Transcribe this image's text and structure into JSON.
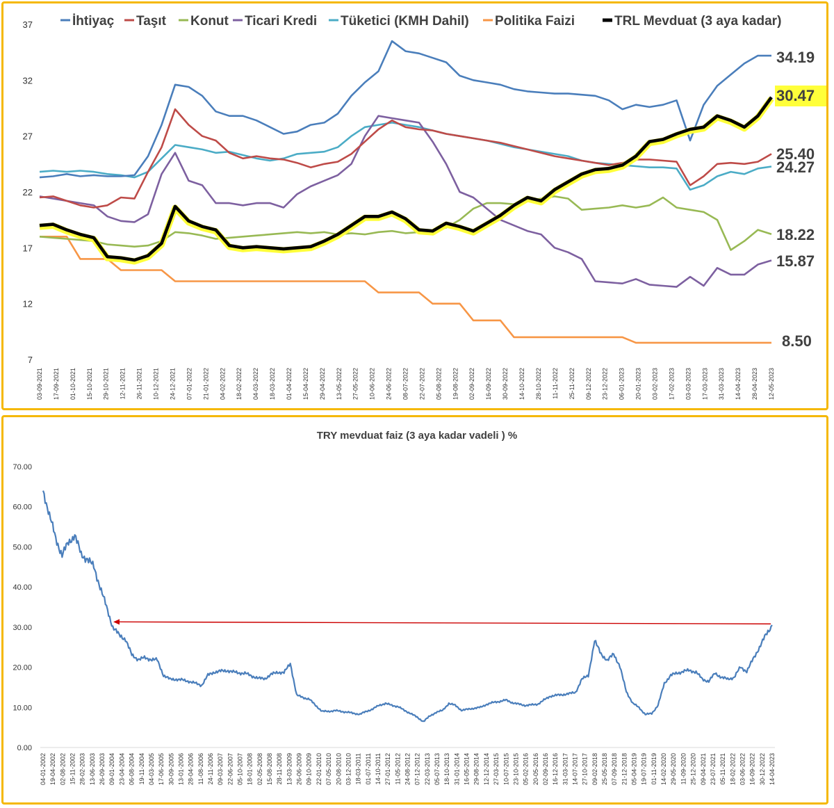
{
  "chart_data": [
    {
      "type": "line",
      "title": "",
      "xlabel": "",
      "ylabel": "",
      "ylim": [
        7,
        37
      ],
      "yticks": [
        7,
        12,
        17,
        22,
        27,
        32,
        37
      ],
      "grid": false,
      "legend_placement": "top",
      "x_ticks": [
        "03-09-2021",
        "17-09-2021",
        "01-10-2021",
        "15-10-2021",
        "29-10-2021",
        "12-11-2021",
        "26-11-2021",
        "10-12-2021",
        "24-12-2021",
        "07-01-2022",
        "21-01-2022",
        "04-02-2022",
        "18-02-2022",
        "04-03-2022",
        "18-03-2022",
        "01-04-2022",
        "15-04-2022",
        "29-04-2022",
        "13-05-2022",
        "27-05-2022",
        "10-06-2022",
        "24-06-2022",
        "08-07-2022",
        "22-07-2022",
        "05-08-2022",
        "19-08-2022",
        "02-09-2022",
        "16-09-2022",
        "30-09-2022",
        "14-10-2022",
        "28-10-2022",
        "11-11-2022",
        "25-11-2022",
        "09-12-2022",
        "23-12-2022",
        "06-01-2023",
        "20-01-2023",
        "03-02-2023",
        "17-02-2023",
        "03-03-2023",
        "17-03-2023",
        "31-03-2023",
        "14-04-2023",
        "28-04-2023",
        "12-05-2023"
      ],
      "series": [
        {
          "name": "İhtiyaç",
          "color": "#4a7ebb",
          "end_label": "34.19",
          "values": [
            23.3,
            23.4,
            23.6,
            23.4,
            23.5,
            23.4,
            23.4,
            23.5,
            25.2,
            28,
            31.6,
            31.4,
            30.6,
            29.2,
            28.8,
            28.8,
            28.4,
            27.8,
            27.2,
            27.4,
            28,
            28.2,
            29,
            30.6,
            31.8,
            32.8,
            35.5,
            34.6,
            34.4,
            34,
            33.6,
            32.4,
            32,
            31.8,
            31.6,
            31.2,
            31,
            30.9,
            30.8,
            30.8,
            30.7,
            30.6,
            30.2,
            29.4,
            29.8,
            29.6,
            29.8,
            30.2,
            26.6,
            29.8,
            31.5,
            32.5,
            33.5,
            34.2,
            34.19
          ]
        },
        {
          "name": "Taşıt",
          "color": "#be4b48",
          "end_label": "25.40",
          "values": [
            21.5,
            21.6,
            21.2,
            20.8,
            20.6,
            20.8,
            21.5,
            21.4,
            23.8,
            26,
            29.4,
            28,
            27,
            26.6,
            25.5,
            25,
            25.2,
            25,
            24.9,
            24.6,
            24.2,
            24.5,
            24.7,
            25.4,
            26.5,
            27.6,
            28.4,
            27.8,
            27.6,
            27.5,
            27.2,
            27,
            26.8,
            26.6,
            26.4,
            26.1,
            25.8,
            25.5,
            25.2,
            25,
            24.8,
            24.6,
            24.4,
            24.6,
            24.9,
            24.9,
            24.8,
            24.7,
            22.6,
            23.4,
            24.5,
            24.6,
            24.5,
            24.7,
            25.4
          ]
        },
        {
          "name": "Konut",
          "color": "#98b954",
          "end_label": "18.22",
          "values": [
            18,
            17.9,
            17.8,
            17.7,
            17.6,
            17.3,
            17.2,
            17.1,
            17.2,
            17.6,
            18.4,
            18.3,
            18.1,
            17.8,
            17.9,
            18,
            18.1,
            18.2,
            18.3,
            18.4,
            18.3,
            18.4,
            18.2,
            18.3,
            18.2,
            18.4,
            18.5,
            18.3,
            18.4,
            18.5,
            18.8,
            19.5,
            20.5,
            21,
            21,
            20.9,
            21.2,
            21.4,
            21.6,
            21.4,
            20.4,
            20.5,
            20.6,
            20.8,
            20.6,
            20.8,
            21.5,
            20.6,
            20.4,
            20.2,
            19.5,
            16.8,
            17.6,
            18.6,
            18.22
          ]
        },
        {
          "name": "Ticari Kredi",
          "color": "#7d60a0",
          "end_label": "15.87",
          "values": [
            21.6,
            21.4,
            21.2,
            21,
            20.8,
            19.8,
            19.4,
            19.3,
            20,
            23.6,
            25.5,
            23,
            22.6,
            21,
            21,
            20.8,
            21,
            21,
            20.6,
            21.8,
            22.5,
            23,
            23.5,
            24.5,
            27,
            28.8,
            28.6,
            28.4,
            28.2,
            26.5,
            24.5,
            22,
            21.5,
            20.5,
            19.5,
            19,
            18.5,
            18.2,
            17,
            16.6,
            16,
            14,
            13.9,
            13.8,
            14.2,
            13.7,
            13.6,
            13.5,
            14.4,
            13.6,
            15.2,
            14.6,
            14.6,
            15.5,
            15.87
          ]
        },
        {
          "name": "Tüketici (KMH Dahil)",
          "color": "#4bacc6",
          "end_label": "24.27",
          "values": [
            23.8,
            23.9,
            23.8,
            23.9,
            23.8,
            23.6,
            23.5,
            23.3,
            23.8,
            25,
            26.2,
            26,
            25.8,
            25.5,
            25.6,
            25.3,
            25,
            24.8,
            25,
            25.4,
            25.5,
            25.6,
            26,
            27,
            27.8,
            28,
            28.2,
            28,
            27.8,
            27.5,
            27.2,
            27,
            26.8,
            26.6,
            26.3,
            26,
            25.8,
            25.6,
            25.4,
            25.2,
            24.8,
            24.6,
            24.5,
            24.4,
            24.3,
            24.2,
            24.2,
            24.1,
            22.2,
            22.6,
            23.4,
            23.8,
            23.6,
            24.1,
            24.27
          ]
        },
        {
          "name": "Politika Faizi",
          "color": "#f79646",
          "end_label": "8.50",
          "values": [
            18,
            18,
            18,
            16,
            16,
            16,
            15,
            15,
            15,
            15,
            14,
            14,
            14,
            14,
            14,
            14,
            14,
            14,
            14,
            14,
            14,
            14,
            14,
            14,
            14,
            13,
            13,
            13,
            13,
            12,
            12,
            12,
            10.5,
            10.5,
            10.5,
            9,
            9,
            9,
            9,
            9,
            9,
            9,
            9,
            9,
            8.5,
            8.5,
            8.5,
            8.5,
            8.5,
            8.5,
            8.5,
            8.5,
            8.5,
            8.5,
            8.5
          ]
        },
        {
          "name": "TRL Mevduat (3 aya kadar)",
          "color": "#000000",
          "end_label": "30.47",
          "values": [
            19,
            19.1,
            18.6,
            18.2,
            17.9,
            16.2,
            16.1,
            15.9,
            16.3,
            17.4,
            20.7,
            19.4,
            18.9,
            18.6,
            17.2,
            17,
            17.1,
            17,
            16.9,
            17,
            17.1,
            17.6,
            18.2,
            19,
            19.8,
            19.8,
            20.2,
            19.6,
            18.6,
            18.5,
            19.2,
            18.9,
            18.5,
            19.2,
            19.9,
            20.8,
            21.5,
            21.2,
            22.2,
            22.9,
            23.6,
            24,
            24.1,
            24.4,
            25.2,
            26.5,
            26.7,
            27.2,
            27.6,
            27.8,
            28.8,
            28.4,
            27.8,
            28.8,
            30.47
          ]
        }
      ]
    },
    {
      "type": "line",
      "title": "TRY mevduat faiz (3 aya kadar vadeli ) %",
      "xlabel": "",
      "ylabel": "",
      "ylim": [
        0,
        70
      ],
      "yticks": [
        "0.00",
        "10.00",
        "20.00",
        "30.00",
        "40.00",
        "50.00",
        "60.00",
        "70.00"
      ],
      "grid": false,
      "x_ticks": [
        "04-01-2002",
        "19-04-2002",
        "02-08-2002",
        "15-11-2002",
        "28-02-2003",
        "13-06-2003",
        "26-09-2003",
        "09-01-2004",
        "23-04-2004",
        "06-08-2004",
        "19-11-2004",
        "04-03-2005",
        "17-06-2005",
        "30-09-2005",
        "13-01-2006",
        "28-04-2006",
        "11-08-2006",
        "24-11-2006",
        "09-03-2007",
        "22-06-2007",
        "05-10-2007",
        "18-01-2008",
        "02-05-2008",
        "15-08-2008",
        "28-11-2008",
        "13-03-2009",
        "26-06-2009",
        "09-10-2009",
        "22-01-2010",
        "07-05-2010",
        "20-08-2010",
        "03-12-2010",
        "18-03-2011",
        "01-07-2011",
        "14-10-2011",
        "27-01-2012",
        "11-05-2012",
        "24-08-2012",
        "07-12-2012",
        "22-03-2013",
        "05-07-2013",
        "18-10-2013",
        "31-01-2014",
        "16-05-2014",
        "29-08-2014",
        "12-12-2014",
        "27-03-2015",
        "10-07-2015",
        "23-10-2015",
        "05-02-2016",
        "20-05-2016",
        "02-09-2016",
        "16-12-2016",
        "31-03-2017",
        "14-07-2017",
        "27-10-2017",
        "09-02-2018",
        "25-05-2018",
        "07-09-2018",
        "21-12-2018",
        "05-04-2019",
        "19-07-2019",
        "01-11-2019",
        "14-02-2020",
        "29-05-2020",
        "11-09-2020",
        "25-12-2020",
        "09-04-2021",
        "23-07-2021",
        "05-11-2021",
        "18-02-2022",
        "03-06-2022",
        "16-09-2022",
        "30-12-2022",
        "14-04-2023"
      ],
      "series": [
        {
          "name": "",
          "color": "#4a7ebb",
          "values": [
            64,
            58,
            52,
            48,
            51,
            53,
            48,
            47,
            45,
            40,
            35,
            30,
            28,
            27,
            23,
            22,
            22.3,
            22,
            21.8,
            18,
            17,
            17,
            16.8,
            16.5,
            16,
            15.5,
            18,
            18.8,
            19,
            19.2,
            18.8,
            18.6,
            18.4,
            17.8,
            17.2,
            17.2,
            18.2,
            18.8,
            18.6,
            21,
            13,
            12.5,
            12,
            10.5,
            9,
            9,
            9.2,
            9,
            8.8,
            8.5,
            8.3,
            9,
            9.6,
            10.5,
            11,
            10.5,
            10.2,
            9.2,
            8.5,
            7.5,
            6.5,
            7.8,
            8.8,
            9.2,
            11,
            10.5,
            9.3,
            9.5,
            9.8,
            10,
            10.8,
            11.2,
            11.5,
            11.8,
            11.2,
            10.8,
            10.5,
            10.6,
            10.8,
            11.8,
            12.8,
            13,
            13.2,
            13.4,
            13.8,
            17,
            18,
            26.5,
            23.5,
            21.5,
            23.5,
            20,
            14,
            11,
            10,
            8.2,
            8.5,
            10.5,
            16,
            18,
            18.5,
            19,
            19.2,
            18.8,
            17,
            16.5,
            18.5,
            17.5,
            17,
            17.5,
            20,
            19,
            22,
            25,
            28,
            30.5
          ]
        }
      ],
      "annotation": {
        "type": "arrow",
        "color": "#cc0000",
        "from_value": 30.8,
        "to_value": 31.3
      }
    }
  ]
}
